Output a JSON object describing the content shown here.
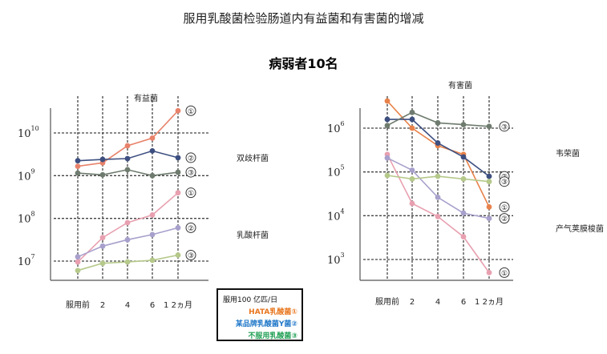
{
  "header": {
    "title": "服用乳酸菌检验肠道内有益菌和有害菌的增减",
    "subtitle": "病弱者10名"
  },
  "legend": {
    "title": "服用100 亿匹/日",
    "items": [
      {
        "label": "HATA乳酸菌①",
        "color": "#e8761e"
      },
      {
        "label": "某品牌乳酸菌Y菌②",
        "color": "#1f77c8"
      },
      {
        "label": "不服用乳酸菌③",
        "color": "#22a055"
      }
    ]
  },
  "chart_data": [
    {
      "type": "line",
      "title": "有益菌",
      "categories": [
        "服用前",
        "2",
        "4",
        "6",
        "1 2ヵ月"
      ],
      "y_scale": "log10",
      "ylim": [
        6.8,
        10.4
      ],
      "y_ticks": [
        {
          "base": "10",
          "exp": "7",
          "value": 7
        },
        {
          "base": "10",
          "exp": "8",
          "value": 8
        },
        {
          "base": "10",
          "exp": "9",
          "value": 9
        },
        {
          "base": "10",
          "exp": "10",
          "value": 10
        }
      ],
      "groups": [
        {
          "label": "双歧杆菌",
          "series": [
            {
              "id": "①",
              "color": "#e8826a",
              "values": [
                9.22,
                9.3,
                9.7,
                9.88,
                10.52
              ]
            },
            {
              "id": "②",
              "color": "#3d4f80",
              "values": [
                9.35,
                9.38,
                9.4,
                9.58,
                9.42
              ]
            },
            {
              "id": "③",
              "color": "#6e7b6e",
              "values": [
                9.06,
                9.02,
                9.14,
                9.0,
                9.08
              ]
            }
          ]
        },
        {
          "label": "乳酸杆菌",
          "series": [
            {
              "id": "①",
              "color": "#e8a0b0",
              "values": [
                6.98,
                7.55,
                7.9,
                8.08,
                8.6
              ]
            },
            {
              "id": "②",
              "color": "#a8a0cc",
              "values": [
                7.1,
                7.35,
                7.5,
                7.62,
                7.78
              ]
            },
            {
              "id": "③",
              "color": "#b5c98a",
              "values": [
                6.78,
                6.95,
                6.98,
                7.02,
                7.14
              ]
            }
          ]
        }
      ]
    },
    {
      "type": "line",
      "title": "有害菌",
      "categories": [
        "服用前",
        "2",
        "4",
        "6",
        "1 2ヵ月"
      ],
      "y_scale": "log10",
      "ylim": [
        2.5,
        6.6
      ],
      "y_ticks": [
        {
          "base": "10",
          "exp": "3",
          "value": 3
        },
        {
          "base": "10",
          "exp": "4",
          "value": 4
        },
        {
          "base": "10",
          "exp": "5",
          "value": 5
        },
        {
          "base": "10",
          "exp": "6",
          "value": 6
        }
      ],
      "groups": [
        {
          "label": "韦荣菌",
          "series": [
            {
              "id": "①",
              "color": "#e8824a",
              "values": [
                6.62,
                6.0,
                5.6,
                5.4,
                4.2
              ]
            },
            {
              "id": "②",
              "color": "#3d4f80",
              "values": [
                6.2,
                6.2,
                5.66,
                5.34,
                4.9
              ]
            },
            {
              "id": "③",
              "color": "#6e7b6e",
              "values": [
                6.06,
                6.36,
                6.12,
                6.08,
                6.04
              ]
            }
          ]
        },
        {
          "label": "产气荚膜梭菌",
          "series": [
            {
              "id": "①",
              "color": "#e8a0b0",
              "values": [
                5.4,
                4.28,
                3.98,
                3.52,
                2.7
              ]
            },
            {
              "id": "②",
              "color": "#a8a0cc",
              "values": [
                5.32,
                5.04,
                4.42,
                4.06,
                3.94
              ]
            },
            {
              "id": "③",
              "color": "#b5c98a",
              "values": [
                4.92,
                4.84,
                4.9,
                4.84,
                4.78
              ]
            }
          ]
        }
      ]
    }
  ]
}
